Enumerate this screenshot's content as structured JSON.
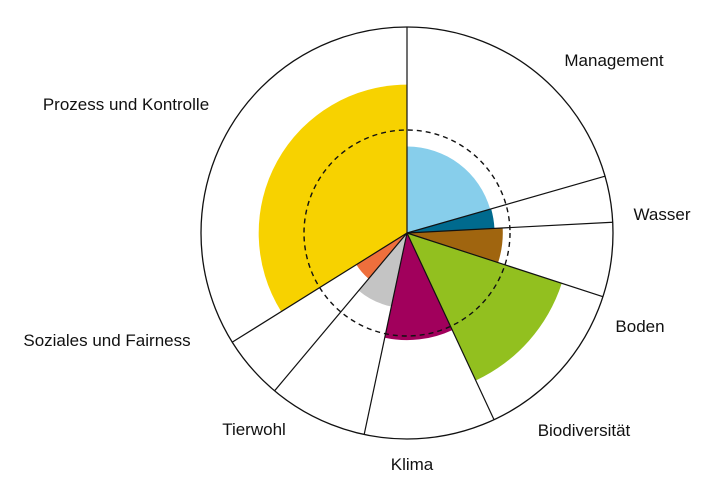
{
  "chart_data": {
    "type": "polar_area",
    "title": "",
    "grid": false,
    "reference_circle": {
      "style": "dashed",
      "value": 1.0
    },
    "outer_ring_value": 2.0,
    "categories": [
      {
        "name": "Management",
        "value": 0.84,
        "color": "#87CEEB",
        "sector_deg": 74
      },
      {
        "name": "Wasser",
        "value": 0.85,
        "color": "#006A8E",
        "sector_deg": 13
      },
      {
        "name": "Boden",
        "value": 0.93,
        "color": "#A0650F",
        "sector_deg": 21
      },
      {
        "name": "Biodiversität",
        "value": 1.58,
        "color": "#92C01F",
        "sector_deg": 47
      },
      {
        "name": "Klima",
        "value": 1.04,
        "color": "#A1005C",
        "sector_deg": 37
      },
      {
        "name": "Tierwohl",
        "value": 0.73,
        "color": "#C4C4C4",
        "sector_deg": 28
      },
      {
        "name": "Soziales und Fairness",
        "value": 0.58,
        "color": "#EE6F3C",
        "sector_deg": 18
      },
      {
        "name": "Prozess und Kontrolle",
        "value": 1.44,
        "color": "#F7D200",
        "sector_deg": 122
      }
    ]
  }
}
